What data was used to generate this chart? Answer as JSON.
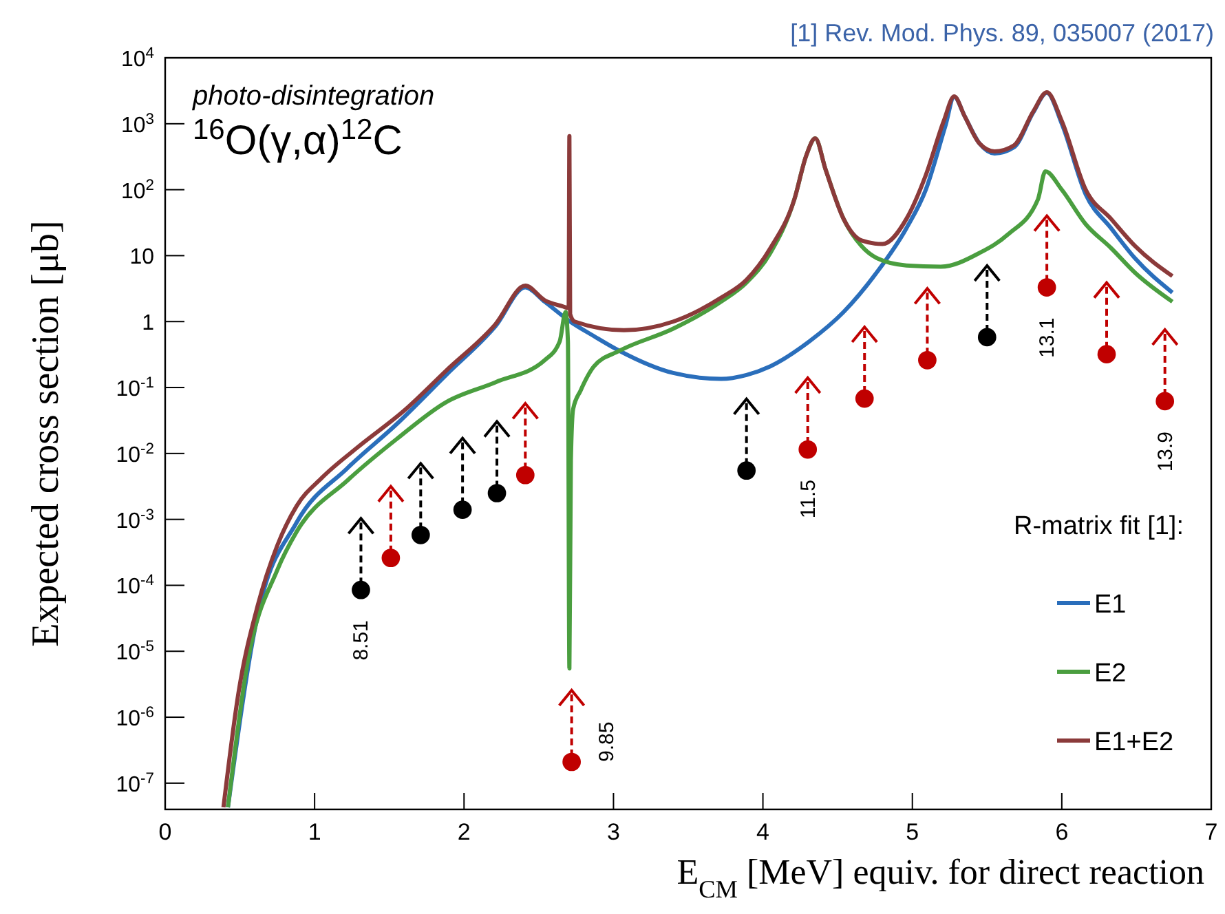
{
  "chart_data": {
    "type": "line",
    "xlabel": "E$_{CM}$ [MeV] equiv. for direct reaction",
    "ylabel": "Expected cross section [μb]",
    "log": "y",
    "xlim": [
      0,
      7
    ],
    "xticks": [
      0,
      1,
      2,
      3,
      4,
      5,
      6,
      7
    ],
    "ylim": [
      4e-08,
      10000
    ],
    "yticks": [
      {
        "value": 1e-07,
        "label": "10$^{-7}$"
      },
      {
        "value": 1e-06,
        "label": "10$^{-6}$"
      },
      {
        "value": 1e-05,
        "label": "10$^{-5}$"
      },
      {
        "value": 0.0001,
        "label": "10$^{-4}$"
      },
      {
        "value": 0.001,
        "label": "10$^{-3}$"
      },
      {
        "value": 0.01,
        "label": "10$^{-2}$"
      },
      {
        "value": 0.1,
        "label": "10$^{-1}$"
      },
      1,
      10,
      {
        "value": 100,
        "label": "10$^{2}$"
      },
      {
        "value": 1000,
        "label": "10$^{3}$"
      },
      {
        "value": 10000,
        "label": "10$^{4}$"
      }
    ],
    "grid": false,
    "legend": "bottom right",
    "legend_title": "R-matrix fit [1]:",
    "series": [
      {
        "name": "E1",
        "color": "#2a6ebb",
        "x": [
          0.42,
          0.62,
          0.88,
          1.22,
          1.55,
          1.88,
          2.21,
          2.41,
          2.54,
          2.71,
          2.87,
          3.04,
          3.4,
          3.72,
          3.89,
          4.05,
          4.31,
          4.54,
          4.76,
          4.96,
          5.09,
          5.22,
          5.28,
          5.35,
          5.45,
          5.55,
          5.68,
          5.81,
          5.9,
          6.0,
          6.16,
          6.33,
          6.49,
          6.74
        ],
        "values": [
          4.3e-08,
          3.6e-05,
          0.0009,
          0.006,
          0.028,
          0.155,
          0.85,
          3.3,
          2.0,
          1.0,
          0.6,
          0.36,
          0.166,
          0.135,
          0.155,
          0.21,
          0.5,
          1.4,
          5.5,
          26,
          100,
          910,
          2550,
          1300,
          500,
          355,
          440,
          1500,
          2950,
          1000,
          85,
          26,
          9.1,
          2.75
        ]
      },
      {
        "name": "E2",
        "color": "#4a9e3f",
        "x": [
          0.42,
          0.55,
          0.75,
          0.88,
          1.22,
          1.55,
          1.88,
          2.21,
          2.54,
          2.64,
          2.68,
          2.695,
          2.705,
          2.715,
          2.73,
          2.78,
          2.87,
          3.04,
          3.4,
          3.72,
          3.89,
          4.05,
          4.21,
          4.29,
          4.35,
          4.42,
          4.54,
          4.66,
          4.77,
          4.96,
          5.19,
          5.45,
          5.64,
          5.84,
          5.89,
          6.0,
          6.16,
          6.33,
          6.49,
          6.74
        ],
        "values": [
          4.3e-08,
          6.5e-06,
          0.00017,
          0.00065,
          0.0039,
          0.0166,
          0.06,
          0.12,
          0.26,
          0.5,
          1.4,
          0.5,
          5.5e-06,
          0.0079,
          0.047,
          0.09,
          0.21,
          0.36,
          0.78,
          2.0,
          3.9,
          11,
          71,
          330,
          600,
          200,
          36,
          14,
          9,
          7.1,
          6.8,
          11,
          21,
          71,
          190,
          100,
          30,
          13,
          5.5,
          2.0
        ]
      },
      {
        "name": "E1+E2",
        "color": "#8b3a3a",
        "x": [
          0.39,
          0.49,
          0.62,
          0.75,
          0.88,
          1.05,
          1.28,
          1.61,
          1.88,
          2.21,
          2.41,
          2.54,
          2.66,
          2.7,
          2.705,
          2.71,
          2.74,
          3.07,
          3.4,
          3.72,
          3.89,
          4.05,
          4.21,
          4.29,
          4.35,
          4.42,
          4.54,
          4.66,
          4.8,
          4.96,
          5.09,
          5.21,
          5.28,
          5.35,
          5.45,
          5.55,
          5.68,
          5.81,
          5.9,
          6.0,
          6.16,
          6.33,
          6.49,
          6.74
        ],
        "values": [
          4.3e-08,
          2.3e-06,
          5e-05,
          0.0004,
          0.0016,
          0.0043,
          0.012,
          0.047,
          0.18,
          0.91,
          3.5,
          2.1,
          1.7,
          1.6,
          650,
          1.3,
          1.0,
          0.74,
          1.0,
          2.3,
          4.3,
          13,
          71,
          330,
          600,
          200,
          36,
          17,
          15,
          36,
          166,
          1100,
          2600,
          1300,
          500,
          380,
          470,
          1550,
          3000,
          1100,
          100,
          36,
          14,
          4.9
        ]
      },
      {
        "type": "scatter",
        "marker": "circle",
        "color": "#000000",
        "x": [
          1.31,
          1.71,
          1.99,
          2.22,
          3.89,
          5.5
        ],
        "values": [
          8.5e-05,
          0.00058,
          0.0014,
          0.0025,
          0.0055,
          0.58
        ]
      },
      {
        "type": "scatter",
        "marker": "circle",
        "color": "#c00000",
        "x": [
          1.51,
          2.41,
          2.72,
          4.3,
          4.68,
          5.1,
          5.9,
          6.3,
          6.69
        ],
        "values": [
          0.00026,
          0.0047,
          2.1e-07,
          0.0115,
          0.068,
          0.26,
          3.3,
          0.32,
          0.062
        ]
      }
    ],
    "annotations": [
      "[1] Rev. Mod. Phys. 89, 035007 (2017)",
      "photo-disintegration",
      "$^{16}$O(γ,α)$^{12}$C",
      {
        "text": "8.51",
        "x": 1.31,
        "y": 8.5e-05
      },
      {
        "text": "9.85",
        "x": 2.72,
        "y": 2.1e-07
      },
      {
        "text": "11.5",
        "x": 4.3,
        "y": 0.0115
      },
      {
        "text": "13.1",
        "x": 5.9,
        "y": 3.3
      },
      {
        "text": "13.9",
        "x": 6.69,
        "y": 0.062
      }
    ]
  }
}
